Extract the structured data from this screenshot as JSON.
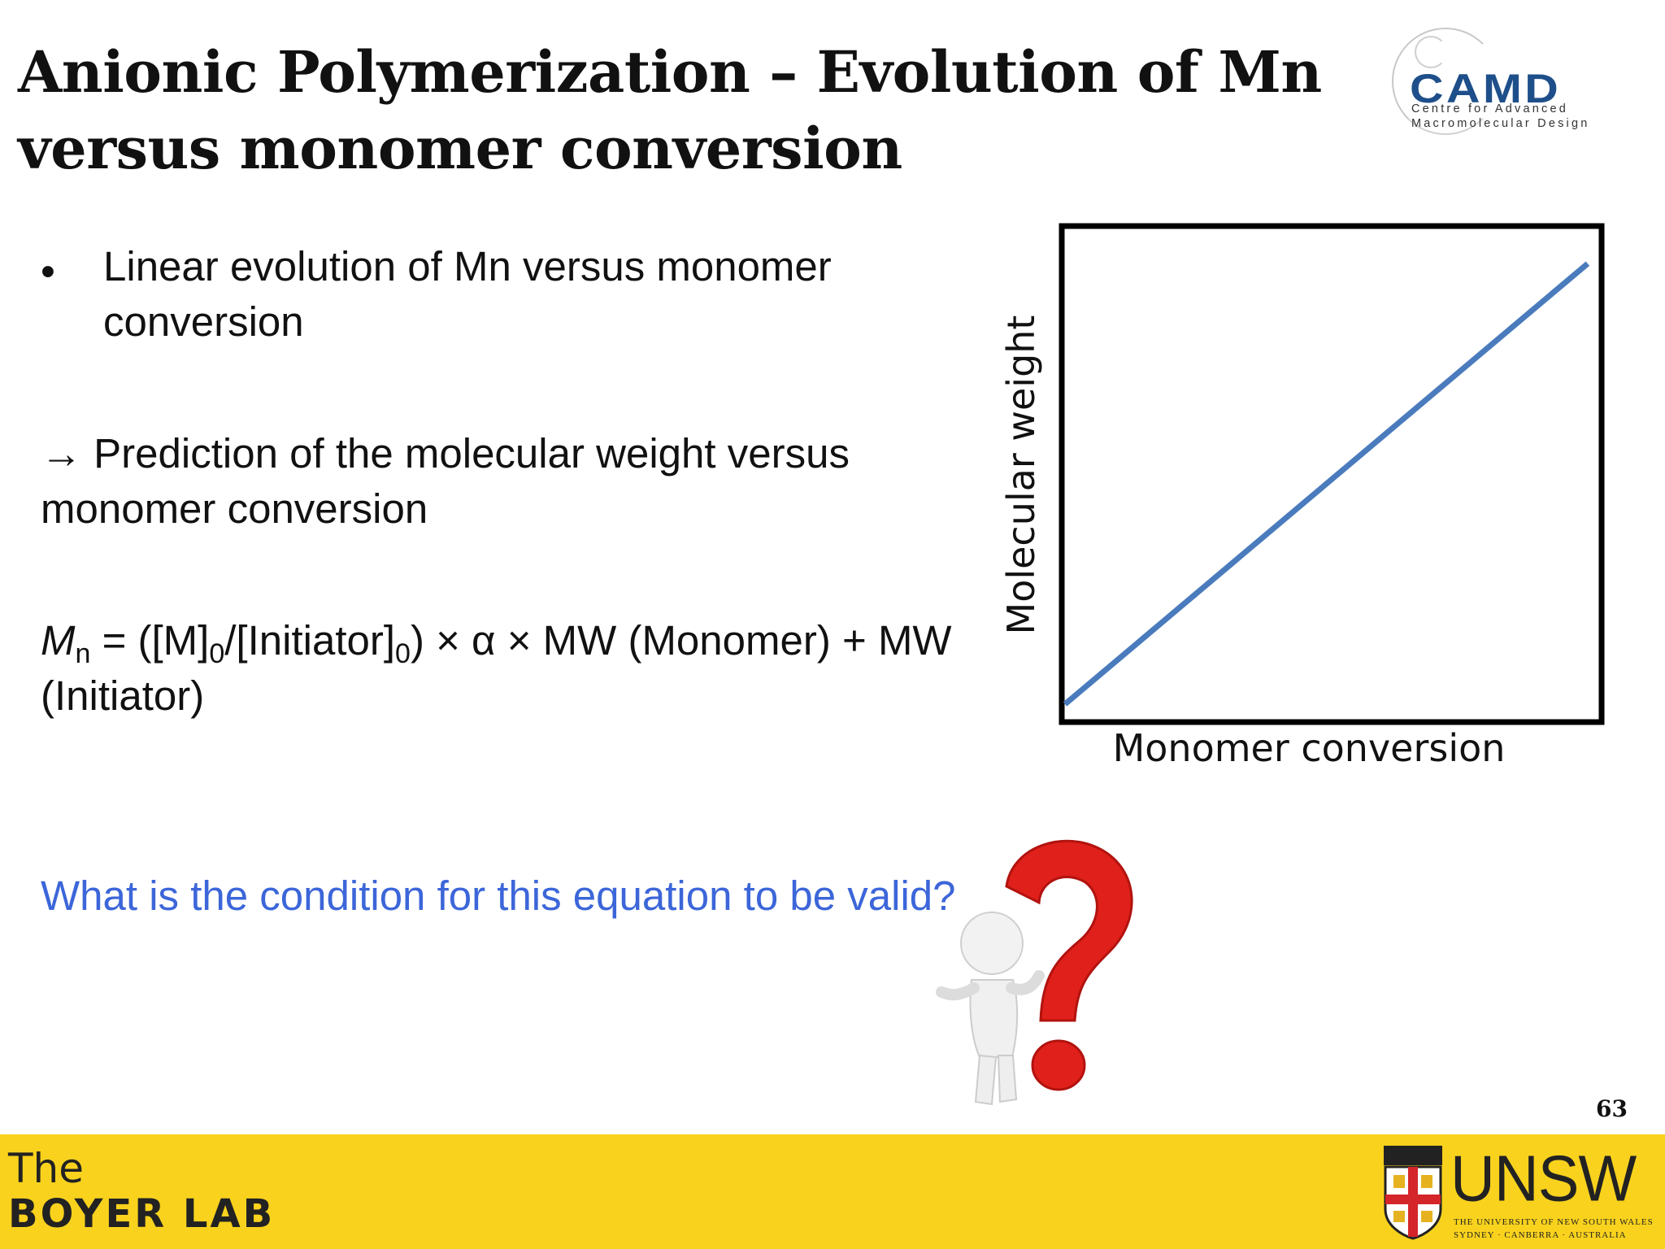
{
  "slide": {
    "title": "Anionic Polymerization – Evolution of Mn versus monomer conversion",
    "page_number": "63"
  },
  "logo_camd": {
    "word": "CAMD",
    "line1": "Centre for Advanced",
    "line2": "Macromolecular Design",
    "color": "#1e4f8a"
  },
  "content": {
    "bullet_glyph": "•",
    "bullet": "Linear evolution of Mn versus monomer conversion",
    "arrow_text": "→ Prediction of the molecular weight versus monomer conversion",
    "equation": {
      "symbol": "M",
      "symbol_sub": "n",
      "part1": " = ([M]",
      "sub1": "0",
      "part2": "/[Initiator]",
      "sub2": "0",
      "part3": ") × α × MW (Monomer) + MW (Initiator)"
    },
    "question": "What is the condition for this equation to be valid?",
    "question_color": "#3c66d9"
  },
  "chart_data": {
    "type": "line",
    "xlabel": "Monomer conversion",
    "ylabel": "Molecular weight",
    "xlim": [
      0,
      1
    ],
    "ylim": [
      0,
      1
    ],
    "series": [
      {
        "x": [
          0,
          0.98
        ],
        "y": [
          0.03,
          0.93
        ],
        "color": "#4a7bbd"
      }
    ],
    "grid": false
  },
  "footer": {
    "background": "#f9d21d",
    "lab_line1": "The",
    "lab_line2": "BOYER LAB",
    "university": "UNSW",
    "university_line1": "THE UNIVERSITY OF NEW SOUTH WALES",
    "university_line2": "SYDNEY · CANBERRA · AUSTRALIA"
  }
}
